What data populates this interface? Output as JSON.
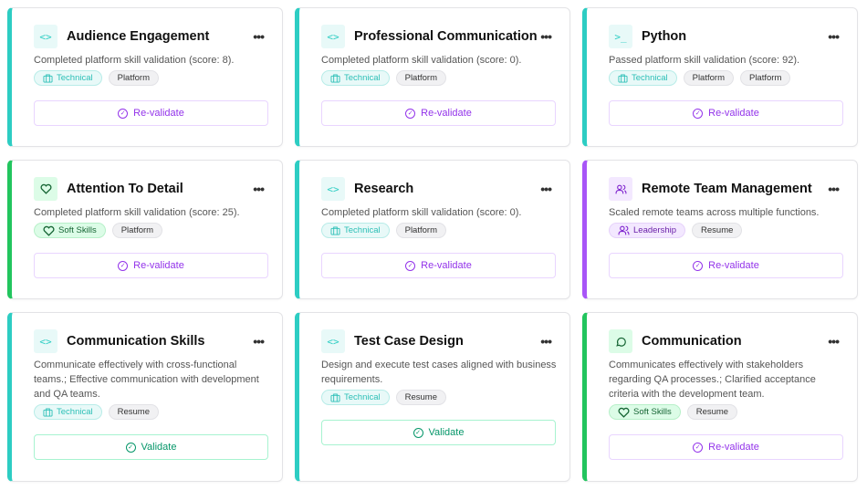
{
  "colors": {
    "technical": "#2dcdc3",
    "soft_skills": "#22c55e",
    "leadership": "#a855f7",
    "revalidate": "#9333ea",
    "validate": "#059669"
  },
  "cards": [
    {
      "title": "Audience Engagement",
      "icon": "code-icon",
      "kind": "technical",
      "description": "Completed platform skill validation (score: 8).",
      "tags": [
        "Technical",
        "Platform"
      ],
      "action": "Re-validate"
    },
    {
      "title": "Professional Communication",
      "icon": "code-icon",
      "kind": "technical",
      "description": "Completed platform skill validation (score: 0).",
      "tags": [
        "Technical",
        "Platform"
      ],
      "action": "Re-validate"
    },
    {
      "title": "Python",
      "icon": "terminal-icon",
      "kind": "technical",
      "description": "Passed platform skill validation (score: 92).",
      "tags": [
        "Technical",
        "Platform",
        "Platform"
      ],
      "action": "Re-validate"
    },
    {
      "title": "Attention To Detail",
      "icon": "heart-icon",
      "kind": "soft",
      "description": "Completed platform skill validation (score: 25).",
      "tags": [
        "Soft Skills",
        "Platform"
      ],
      "action": "Re-validate"
    },
    {
      "title": "Research",
      "icon": "code-icon",
      "kind": "technical",
      "description": "Completed platform skill validation (score: 0).",
      "tags": [
        "Technical",
        "Platform"
      ],
      "action": "Re-validate"
    },
    {
      "title": "Remote Team Management",
      "icon": "users-icon",
      "kind": "lead",
      "description": "Scaled remote teams across multiple functions.",
      "tags": [
        "Leadership",
        "Resume"
      ],
      "action": "Re-validate"
    },
    {
      "title": "Communication Skills",
      "icon": "code-icon",
      "kind": "technical",
      "description": "Communicate effectively with cross-functional teams.; Effective communication with development and QA teams.",
      "tags": [
        "Technical",
        "Resume"
      ],
      "action": "Validate"
    },
    {
      "title": "Test Case Design",
      "icon": "code-icon",
      "kind": "technical",
      "description": "Design and execute test cases aligned with business requirements.",
      "tags": [
        "Technical",
        "Resume"
      ],
      "action": "Validate"
    },
    {
      "title": "Communication",
      "icon": "chat-icon",
      "kind": "soft",
      "description": "Communicates effectively with stakeholders regarding QA processes.; Clarified acceptance criteria with the development team.",
      "tags": [
        "Soft Skills",
        "Resume"
      ],
      "action": "Re-validate"
    }
  ],
  "more_label": "•••"
}
